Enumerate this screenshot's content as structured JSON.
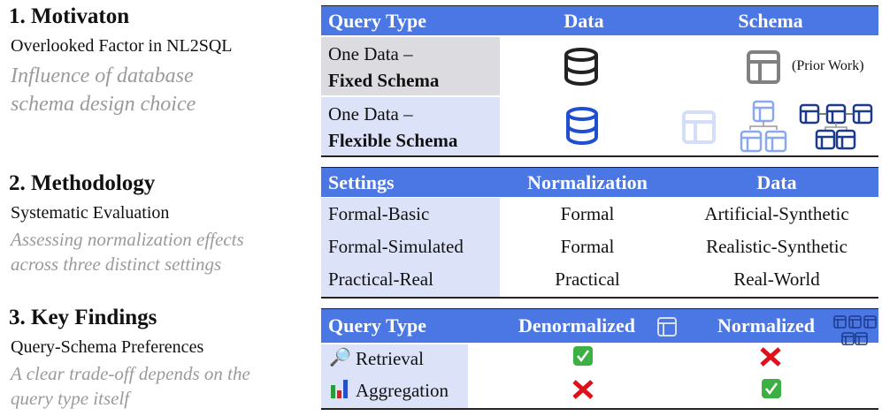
{
  "sections": [
    {
      "title": "1. Motivaton",
      "subtitle": "Overlooked Factor in NL2SQL",
      "description": [
        "Influence of database",
        "schema design choice"
      ]
    },
    {
      "title": "2. Methodology",
      "subtitle": "Systematic Evaluation",
      "description": [
        "Assessing normalization effects",
        "across three distinct settings"
      ]
    },
    {
      "title": "3. Key Findings",
      "subtitle": "Query-Schema Preferences",
      "description": [
        "A clear trade-off depends on the",
        "query type itself"
      ]
    }
  ],
  "table1": {
    "headers": [
      "Query Type",
      "Data",
      "Schema"
    ],
    "rows": [
      {
        "line1": "One Data –",
        "line2": "Fixed Schema",
        "data_icon": "database-icon-black",
        "schema_icon": "table-icon-gray",
        "note": "(Prior Work)"
      },
      {
        "line1": "One Data –",
        "line2": "Flexible Schema",
        "data_icon": "database-icon-blue",
        "schema_icons": [
          "table-icon-faded",
          "table-tree-icon-light",
          "table-network-icon-dark"
        ]
      }
    ]
  },
  "table2": {
    "headers": [
      "Settings",
      "Normalization",
      "Data"
    ],
    "rows": [
      [
        "Formal-Basic",
        "Formal",
        "Artificial-Synthetic"
      ],
      [
        "Formal-Simulated",
        "Formal",
        "Realistic-Synthetic"
      ],
      [
        "Practical-Real",
        "Practical",
        "Real-World"
      ]
    ]
  },
  "table3": {
    "headers": [
      "Query Type",
      "Denormalized",
      "Normalized"
    ],
    "rows": [
      {
        "label": "Retrieval",
        "icon": "magnifier-icon",
        "denormalized": "check",
        "normalized": "cross"
      },
      {
        "label": "Aggregation",
        "icon": "bar-chart-icon",
        "denormalized": "cross",
        "normalized": "check"
      }
    ]
  },
  "colors": {
    "header": "#4a77e4",
    "label_bg": "#dce3f8",
    "fixed_bg": "#dcdce0",
    "check": "#3cb043",
    "cross": "#e0101a"
  }
}
